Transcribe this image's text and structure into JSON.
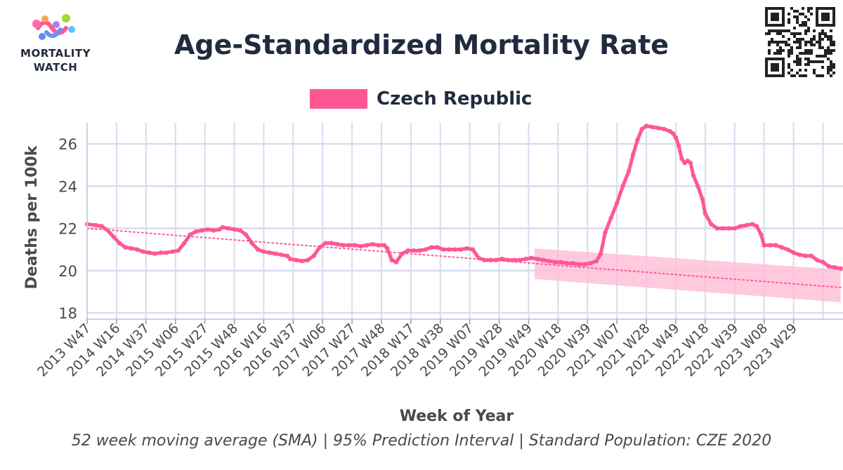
{
  "header": {
    "logo_text_line1": "MORTALITY",
    "logo_text_line2": "WATCH",
    "title": "Age-Standardized Mortality Rate",
    "subtitle": "52 week moving average (SMA) | 95% Prediction Interval | Standard Population: CZE 2020"
  },
  "colors": {
    "series": "#ff5794",
    "band": "#ffc0d8",
    "grid": "#d7dcf0",
    "axis": "#c9cfe8",
    "text": "#222a3f"
  },
  "chart_data": {
    "type": "line",
    "title": "Age-Standardized Mortality Rate",
    "subtitle": "52 week moving average (SMA) | 95% Prediction Interval | Standard Population: CZE 2020",
    "xlabel": "Week of Year",
    "ylabel": "Deaths per 100k",
    "ylim": [
      17.7,
      27.0
    ],
    "yticks": [
      18,
      20,
      22,
      24,
      26
    ],
    "x_ticks": [
      "2013 W47",
      "2014 W16",
      "2014 W37",
      "2015 W06",
      "2015 W27",
      "2015 W48",
      "2016 W16",
      "2016 W37",
      "2017 W06",
      "2017 W27",
      "2017 W48",
      "2018 W17",
      "2018 W38",
      "2019 W07",
      "2019 W28",
      "2019 W49",
      "2020 W18",
      "2020 W39",
      "2021 W07",
      "2021 W28",
      "2021 W49",
      "2022 W18",
      "2022 W39",
      "2023 W08",
      "2023 W29"
    ],
    "x_end_index": 25,
    "legend": {
      "position": "top-center",
      "entries": [
        "Czech Republic"
      ]
    },
    "grid": true,
    "series": [
      {
        "name": "Czech Republic",
        "points": [
          [
            0,
            22.2
          ],
          [
            0.3,
            22.15
          ],
          [
            0.5,
            22.1
          ],
          [
            0.7,
            21.9
          ],
          [
            0.9,
            21.6
          ],
          [
            1.1,
            21.3
          ],
          [
            1.3,
            21.1
          ],
          [
            1.5,
            21.05
          ],
          [
            1.7,
            21.0
          ],
          [
            1.9,
            20.9
          ],
          [
            2.1,
            20.85
          ],
          [
            2.3,
            20.8
          ],
          [
            2.5,
            20.85
          ],
          [
            2.7,
            20.85
          ],
          [
            2.9,
            20.9
          ],
          [
            3.1,
            20.95
          ],
          [
            3.3,
            21.3
          ],
          [
            3.5,
            21.7
          ],
          [
            3.7,
            21.85
          ],
          [
            3.9,
            21.9
          ],
          [
            4.1,
            21.95
          ],
          [
            4.3,
            21.9
          ],
          [
            4.5,
            21.95
          ],
          [
            4.6,
            22.05
          ],
          [
            4.8,
            22.0
          ],
          [
            5.0,
            21.95
          ],
          [
            5.2,
            21.9
          ],
          [
            5.4,
            21.7
          ],
          [
            5.6,
            21.3
          ],
          [
            5.8,
            21.0
          ],
          [
            6.0,
            20.9
          ],
          [
            6.2,
            20.85
          ],
          [
            6.4,
            20.8
          ],
          [
            6.6,
            20.75
          ],
          [
            6.8,
            20.7
          ],
          [
            6.9,
            20.55
          ],
          [
            7.1,
            20.5
          ],
          [
            7.3,
            20.45
          ],
          [
            7.5,
            20.5
          ],
          [
            7.7,
            20.7
          ],
          [
            7.9,
            21.1
          ],
          [
            8.1,
            21.3
          ],
          [
            8.3,
            21.3
          ],
          [
            8.5,
            21.25
          ],
          [
            8.7,
            21.2
          ],
          [
            8.9,
            21.2
          ],
          [
            9.1,
            21.2
          ],
          [
            9.3,
            21.15
          ],
          [
            9.5,
            21.2
          ],
          [
            9.7,
            21.25
          ],
          [
            9.9,
            21.2
          ],
          [
            10.1,
            21.2
          ],
          [
            10.2,
            21.05
          ],
          [
            10.35,
            20.5
          ],
          [
            10.5,
            20.4
          ],
          [
            10.7,
            20.8
          ],
          [
            10.9,
            20.95
          ],
          [
            11.1,
            20.95
          ],
          [
            11.3,
            20.95
          ],
          [
            11.5,
            21.0
          ],
          [
            11.7,
            21.1
          ],
          [
            11.9,
            21.1
          ],
          [
            12.1,
            21.0
          ],
          [
            12.3,
            21.0
          ],
          [
            12.5,
            21.0
          ],
          [
            12.7,
            21.0
          ],
          [
            12.9,
            21.05
          ],
          [
            13.1,
            21.0
          ],
          [
            13.3,
            20.6
          ],
          [
            13.5,
            20.5
          ],
          [
            13.7,
            20.5
          ],
          [
            13.9,
            20.5
          ],
          [
            14.1,
            20.55
          ],
          [
            14.3,
            20.5
          ],
          [
            14.5,
            20.5
          ],
          [
            14.7,
            20.5
          ],
          [
            14.9,
            20.55
          ],
          [
            15.1,
            20.6
          ],
          [
            15.3,
            20.55
          ],
          [
            15.5,
            20.5
          ],
          [
            15.7,
            20.45
          ],
          [
            15.9,
            20.4
          ],
          [
            16.1,
            20.4
          ],
          [
            16.3,
            20.35
          ],
          [
            16.5,
            20.35
          ],
          [
            16.7,
            20.3
          ],
          [
            16.9,
            20.3
          ],
          [
            17.1,
            20.35
          ],
          [
            17.3,
            20.45
          ],
          [
            17.45,
            20.8
          ],
          [
            17.6,
            21.8
          ],
          [
            17.8,
            22.5
          ],
          [
            18.0,
            23.2
          ],
          [
            18.2,
            24.0
          ],
          [
            18.4,
            24.7
          ],
          [
            18.55,
            25.5
          ],
          [
            18.7,
            26.2
          ],
          [
            18.85,
            26.7
          ],
          [
            19.0,
            26.85
          ],
          [
            19.2,
            26.8
          ],
          [
            19.4,
            26.75
          ],
          [
            19.6,
            26.7
          ],
          [
            19.8,
            26.6
          ],
          [
            19.9,
            26.5
          ],
          [
            20.0,
            26.3
          ],
          [
            20.1,
            25.9
          ],
          [
            20.2,
            25.3
          ],
          [
            20.3,
            25.1
          ],
          [
            20.4,
            25.2
          ],
          [
            20.5,
            25.1
          ],
          [
            20.6,
            24.5
          ],
          [
            20.75,
            24.0
          ],
          [
            20.9,
            23.4
          ],
          [
            21.0,
            22.7
          ],
          [
            21.2,
            22.2
          ],
          [
            21.4,
            22.0
          ],
          [
            21.6,
            22.0
          ],
          [
            21.8,
            22.0
          ],
          [
            22.0,
            22.0
          ],
          [
            22.2,
            22.1
          ],
          [
            22.4,
            22.15
          ],
          [
            22.6,
            22.2
          ],
          [
            22.75,
            22.1
          ],
          [
            22.9,
            21.7
          ],
          [
            23.0,
            21.2
          ],
          [
            23.2,
            21.2
          ],
          [
            23.4,
            21.2
          ],
          [
            23.6,
            21.1
          ],
          [
            23.8,
            21.0
          ],
          [
            24.0,
            20.85
          ],
          [
            24.2,
            20.75
          ],
          [
            24.4,
            20.7
          ],
          [
            24.6,
            20.7
          ],
          [
            24.8,
            20.5
          ],
          [
            25.0,
            20.4
          ],
          [
            25.2,
            20.2
          ],
          [
            25.4,
            20.15
          ],
          [
            25.6,
            20.1
          ]
        ]
      }
    ],
    "baseline": {
      "style": "dotted",
      "from": [
        0,
        22.0
      ],
      "to": [
        25.6,
        19.2
      ]
    },
    "prediction_interval": {
      "label": "95% Prediction Interval",
      "from_x": 15.2,
      "to_x": 25.6,
      "upper": [
        21.05,
        20.05
      ],
      "lower": [
        19.6,
        18.5
      ]
    }
  }
}
